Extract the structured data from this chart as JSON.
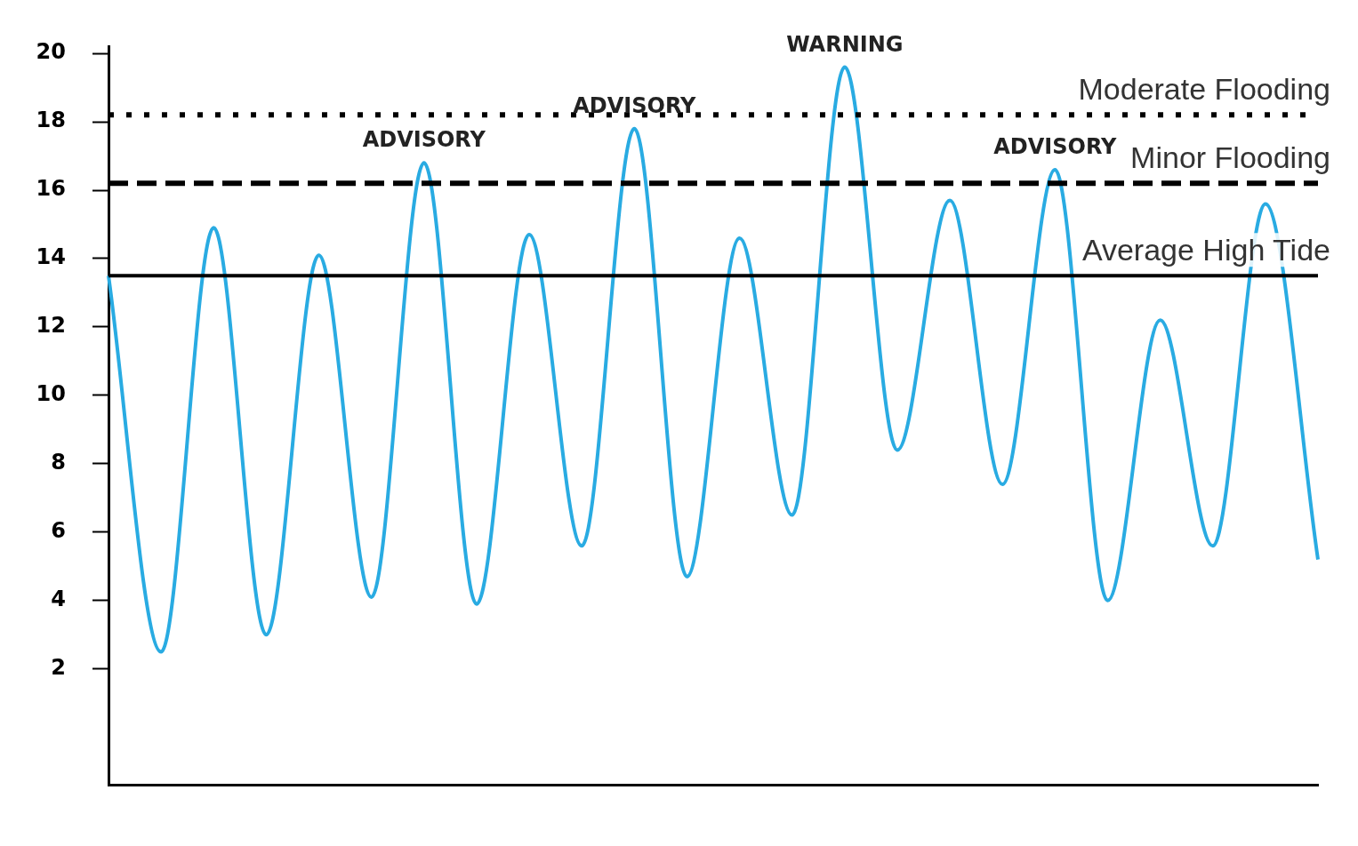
{
  "chart_data": {
    "type": "line",
    "categories": [
      null,
      null,
      null,
      null,
      null,
      null,
      null,
      null,
      null,
      null,
      null,
      null,
      null,
      null,
      null,
      null,
      null,
      null,
      null,
      null,
      null,
      null,
      null,
      null
    ],
    "series": [
      {
        "color": "#29abe2",
        "values": [
          13.5,
          2.5,
          14.9,
          3.0,
          14.1,
          4.1,
          16.8,
          3.9,
          14.7,
          5.6,
          17.8,
          4.7,
          14.6,
          6.5,
          19.6,
          8.4,
          15.7,
          7.4,
          16.6,
          4.0,
          12.2,
          5.6,
          15.6,
          5.2
        ]
      }
    ],
    "ylim": [
      -1.4,
      20.2
    ],
    "yticks": [
      2,
      4,
      6,
      8,
      10,
      12,
      14,
      16,
      18,
      20
    ],
    "grid": false,
    "legend": false,
    "marker": "none",
    "line_style": "solid",
    "ref_lines": [
      {
        "axis": "y",
        "value": 18.2,
        "label": "Moderate Flooding",
        "color": "#000000",
        "line_style": "dotted"
      },
      {
        "axis": "y",
        "value": 16.2,
        "label": "Minor Flooding",
        "color": "#000000",
        "line_style": "dashed"
      },
      {
        "axis": "y",
        "value": 13.5,
        "label": "Average High Tide",
        "color": "#000000",
        "line_style": "solid"
      }
    ],
    "annotations": [
      {
        "text": "ADVISORY",
        "y": 16.8
      },
      {
        "text": "ADVISORY",
        "y": 17.8
      },
      {
        "text": "WARNING",
        "y": 19.6
      },
      {
        "text": "ADVISORY",
        "y": 16.6
      }
    ]
  }
}
